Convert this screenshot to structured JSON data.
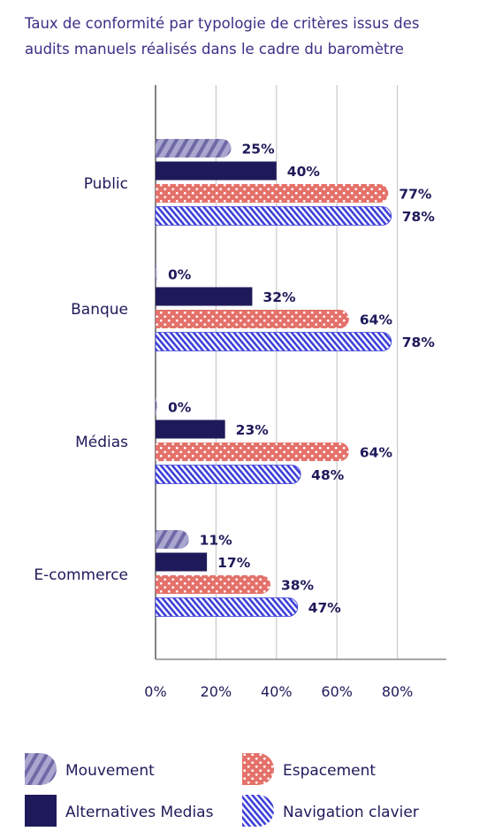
{
  "title_lines": [
    "Taux de conformité par typologie de critères issus des",
    "audits manuels réalisés dans le cadre du baromètre"
  ],
  "colors": {
    "mouvement": "#8a86b8",
    "alternatives": "#1e1a5a",
    "espacement": "#e4716a",
    "navigation": "#3d3fd8",
    "grid": "#c9c9c9",
    "text": "#1e1a5a"
  },
  "chart_data": {
    "type": "bar",
    "orientation": "horizontal",
    "categories": [
      "Public",
      "Banque",
      "Médias",
      "E-commerce"
    ],
    "series": [
      {
        "name": "Mouvement",
        "values": [
          25,
          0,
          0,
          11
        ],
        "labels": [
          "25%",
          "0%",
          "0%",
          "11%"
        ],
        "pattern": "diagonal-stripes"
      },
      {
        "name": "Alternatives Medias",
        "values": [
          40,
          32,
          23,
          17
        ],
        "labels": [
          "40%",
          "32%",
          "23%",
          "17%"
        ],
        "pattern": "solid"
      },
      {
        "name": "Espacement",
        "values": [
          77,
          64,
          64,
          38
        ],
        "labels": [
          "77%",
          "64%",
          "64%",
          "38%"
        ],
        "pattern": "dots"
      },
      {
        "name": "Navigation clavier",
        "values": [
          78,
          78,
          48,
          47
        ],
        "labels": [
          "78%",
          "78%",
          "48%",
          "47%"
        ],
        "pattern": "dense-stripes"
      }
    ],
    "x_ticks": [
      "0%",
      "20%",
      "40%",
      "60%",
      "80%"
    ],
    "xlim": [
      0,
      80
    ],
    "grid": "vertical",
    "legend": "bottom"
  }
}
